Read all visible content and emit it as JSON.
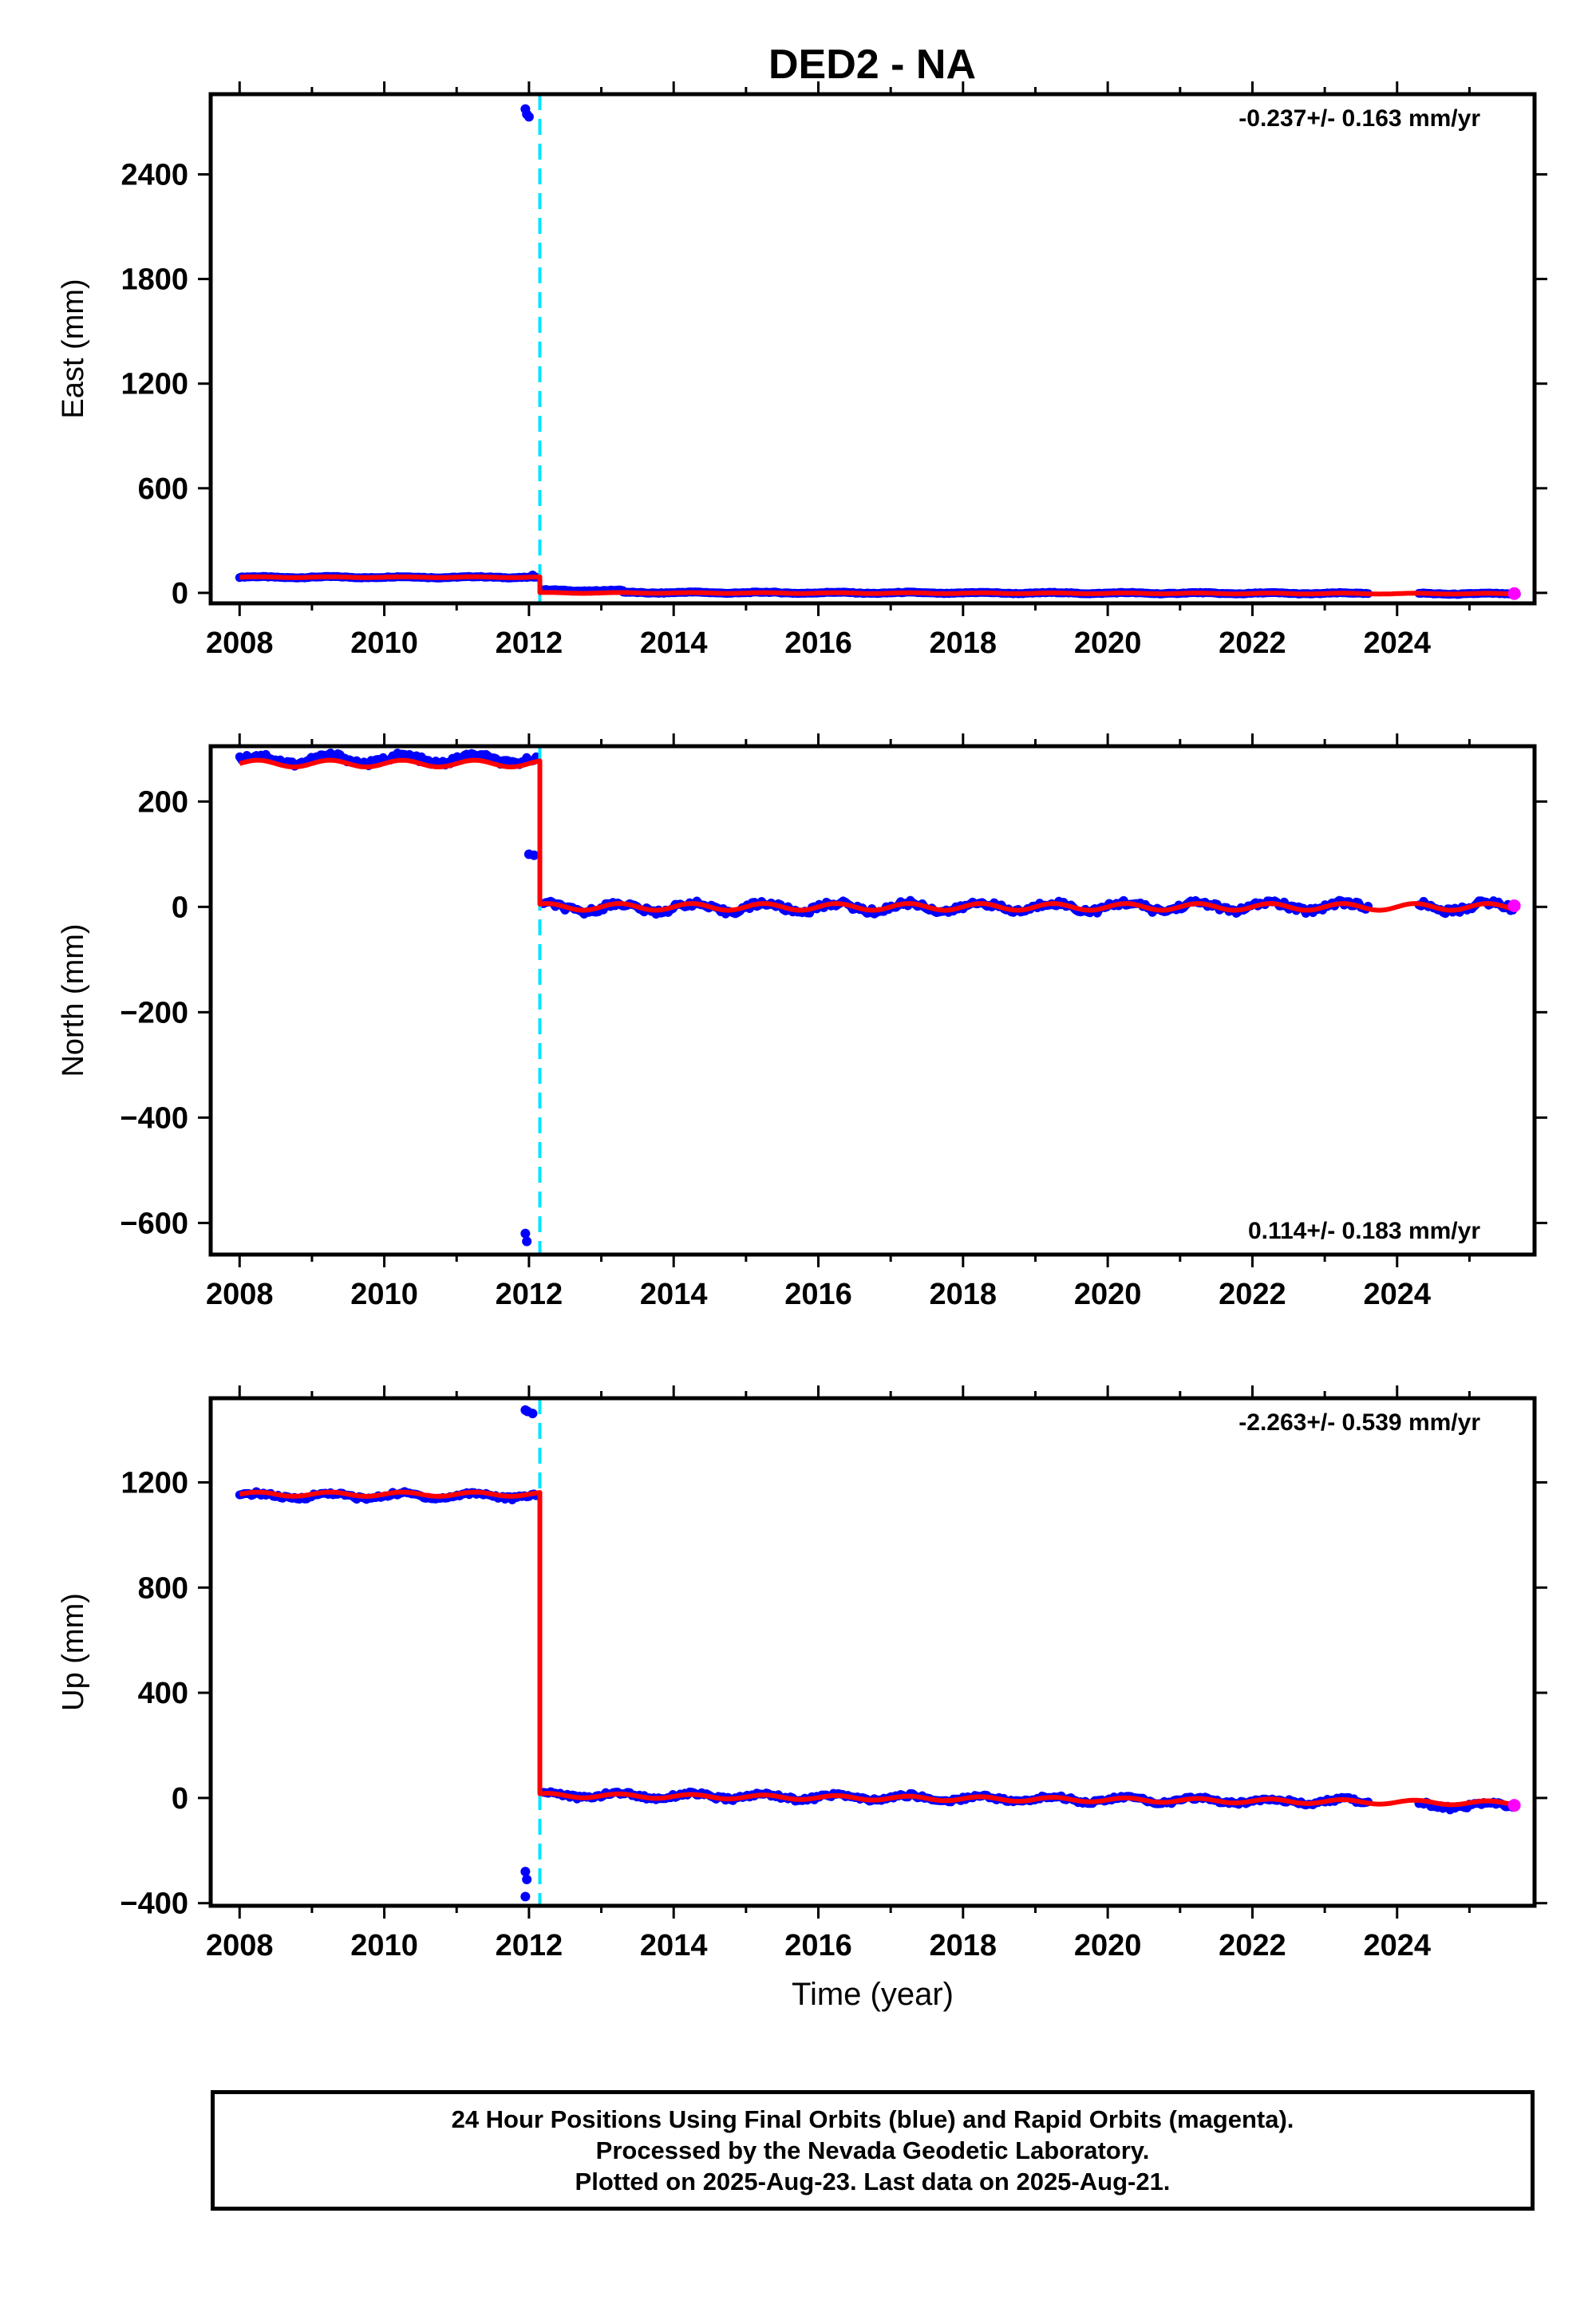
{
  "title": "DED2 - NA",
  "colors": {
    "final_orbits": "#0000ff",
    "rapid_orbits": "#ff00ff",
    "model": "#ff0000",
    "offset_line": "#00e5ff",
    "frame": "#000000"
  },
  "footer": {
    "line1": "24 Hour Positions Using Final Orbits (blue) and Rapid Orbits (magenta).",
    "line2": "Processed by the Nevada Geodetic Laboratory.",
    "line3": "Plotted on 2025-Aug-23. Last data on 2025-Aug-21."
  },
  "chart_data": [
    {
      "type": "scatter",
      "panel": "east",
      "ylabel": "East (mm)",
      "xlabel": "",
      "rate_label": "-0.237+/- 0.163 mm/yr",
      "rate_position": "top-right",
      "xlim": [
        2007.6,
        2025.9
      ],
      "ylim": [
        -60,
        2860
      ],
      "x_ticks": [
        2008,
        2010,
        2012,
        2014,
        2016,
        2018,
        2020,
        2022,
        2024
      ],
      "y_ticks": [
        0,
        600,
        1200,
        1800,
        2400
      ],
      "offset_epoch": 2012.15,
      "model_segments": [
        {
          "x": [
            2008.0,
            2012.15
          ],
          "y": [
            90,
            90
          ]
        },
        {
          "x": [
            2012.15,
            2025.65
          ],
          "y": [
            0,
            -5
          ]
        }
      ],
      "final_segments": [
        {
          "x": [
            2008.0,
            2012.1
          ],
          "y": [
            90,
            90
          ]
        },
        {
          "x": [
            2012.2,
            2013.3
          ],
          "y": [
            15,
            12
          ]
        },
        {
          "x": [
            2013.3,
            2023.6
          ],
          "y": [
            2,
            -3
          ]
        },
        {
          "x": [
            2024.3,
            2025.65
          ],
          "y": [
            -4,
            -6
          ]
        }
      ],
      "outliers": [
        {
          "x": 2011.95,
          "y": 2775
        },
        {
          "x": 2011.97,
          "y": 2745
        },
        {
          "x": 2012.0,
          "y": 2730
        },
        {
          "x": 2012.05,
          "y": 100
        }
      ],
      "rapid_points": [
        {
          "x": 2025.62,
          "y": -4
        }
      ],
      "wobble": {
        "amp": 3,
        "period": 1.0
      }
    },
    {
      "type": "scatter",
      "panel": "north",
      "ylabel": "North (mm)",
      "xlabel": "",
      "rate_label": "0.114+/- 0.183 mm/yr",
      "rate_position": "bottom-right",
      "xlim": [
        2007.6,
        2025.9
      ],
      "ylim": [
        -660,
        305
      ],
      "x_ticks": [
        2008,
        2010,
        2012,
        2014,
        2016,
        2018,
        2020,
        2022,
        2024
      ],
      "y_ticks": [
        -600,
        -400,
        -200,
        0,
        200
      ],
      "offset_epoch": 2012.15,
      "model_segments": [
        {
          "x": [
            2008.0,
            2012.15
          ],
          "y": [
            272,
            272
          ]
        },
        {
          "x": [
            2012.15,
            2025.65
          ],
          "y": [
            0,
            0
          ]
        }
      ],
      "final_segments": [
        {
          "x": [
            2008.0,
            2012.1
          ],
          "y": [
            280,
            280
          ]
        },
        {
          "x": [
            2012.2,
            2023.6
          ],
          "y": [
            -2,
            1
          ]
        },
        {
          "x": [
            2024.3,
            2025.6
          ],
          "y": [
            -1,
            1
          ]
        }
      ],
      "outliers": [
        {
          "x": 2011.95,
          "y": -620
        },
        {
          "x": 2011.97,
          "y": -635
        },
        {
          "x": 2012.0,
          "y": 100
        },
        {
          "x": 2012.07,
          "y": 98
        }
      ],
      "rapid_points": [
        {
          "x": 2025.62,
          "y": 2
        }
      ],
      "wobble": {
        "amp": 8,
        "period": 1.0
      }
    },
    {
      "type": "scatter",
      "panel": "up",
      "ylabel": "Up (mm)",
      "xlabel": "Time (year)",
      "rate_label": "-2.263+/- 0.539 mm/yr",
      "rate_position": "top-right",
      "xlim": [
        2007.6,
        2025.9
      ],
      "ylim": [
        -410,
        1520
      ],
      "x_ticks": [
        2008,
        2010,
        2012,
        2014,
        2016,
        2018,
        2020,
        2022,
        2024
      ],
      "y_ticks": [
        -400,
        0,
        400,
        800,
        1200
      ],
      "offset_epoch": 2012.15,
      "model_segments": [
        {
          "x": [
            2008.0,
            2012.15
          ],
          "y": [
            1155,
            1155
          ]
        },
        {
          "x": [
            2012.15,
            2023.6
          ],
          "y": [
            10,
            -15
          ]
        },
        {
          "x": [
            2023.6,
            2025.65
          ],
          "y": [
            -15,
            -20
          ]
        }
      ],
      "final_segments": [
        {
          "x": [
            2008.0,
            2012.1
          ],
          "y": [
            1148,
            1150
          ]
        },
        {
          "x": [
            2012.2,
            2023.6
          ],
          "y": [
            12,
            -15
          ]
        },
        {
          "x": [
            2024.3,
            2025.6
          ],
          "y": [
            -28,
            -30
          ]
        }
      ],
      "outliers": [
        {
          "x": 2011.95,
          "y": 1475
        },
        {
          "x": 2011.98,
          "y": 1470
        },
        {
          "x": 2012.05,
          "y": 1462
        },
        {
          "x": 2011.95,
          "y": -280
        },
        {
          "x": 2011.97,
          "y": -310
        },
        {
          "x": 2011.95,
          "y": -375
        }
      ],
      "rapid_points": [
        {
          "x": 2025.62,
          "y": -28
        }
      ],
      "wobble": {
        "amp": 10,
        "period": 1.0
      }
    }
  ]
}
